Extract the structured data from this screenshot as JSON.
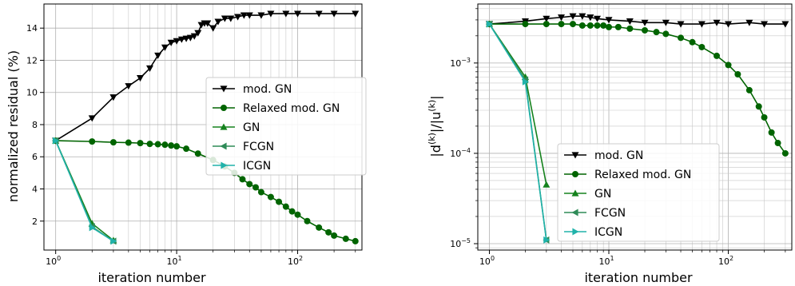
{
  "colors": {
    "mod_gn": "#000000",
    "relaxed_mod_gn": "#006400",
    "gn": "#15821d",
    "fcgn": "#2e8b57",
    "icgn": "#20b2aa"
  },
  "chart_data": [
    {
      "type": "line",
      "xscale": "log",
      "yscale": "linear",
      "xlabel": "iteration number",
      "ylabel": "normalized residual (%)",
      "xlim": [
        0.8,
        340
      ],
      "ylim": [
        0.2,
        15.5
      ],
      "xticks": [
        {
          "base": "10",
          "exp": "0"
        },
        {
          "base": "10",
          "exp": "1"
        },
        {
          "base": "10",
          "exp": "2"
        }
      ],
      "yticks": [
        "2",
        "4",
        "6",
        "8",
        "10",
        "12",
        "14"
      ],
      "grid": true,
      "legend": "center-right",
      "series": [
        {
          "name": "mod. GN",
          "marker": "triangle-down",
          "color": "#000000",
          "x": [
            1,
            2,
            3,
            4,
            5,
            6,
            7,
            8,
            9,
            10,
            11,
            12,
            13,
            14,
            15,
            16,
            17,
            18,
            20,
            22,
            25,
            28,
            32,
            36,
            40,
            50,
            60,
            80,
            100,
            150,
            200,
            300
          ],
          "y": [
            7.0,
            8.4,
            9.7,
            10.4,
            10.9,
            11.5,
            12.3,
            12.8,
            13.1,
            13.2,
            13.3,
            13.35,
            13.4,
            13.5,
            13.7,
            14.2,
            14.3,
            14.3,
            14.0,
            14.4,
            14.6,
            14.6,
            14.7,
            14.8,
            14.8,
            14.8,
            14.9,
            14.9,
            14.9,
            14.9,
            14.9,
            14.9
          ]
        },
        {
          "name": "Relaxed mod. GN",
          "marker": "circle",
          "color": "#006400",
          "x": [
            1,
            2,
            3,
            4,
            5,
            6,
            7,
            8,
            9,
            10,
            12,
            15,
            20,
            25,
            30,
            35,
            40,
            45,
            50,
            60,
            70,
            80,
            90,
            100,
            120,
            150,
            180,
            200,
            250,
            300
          ],
          "y": [
            7.0,
            6.95,
            6.9,
            6.88,
            6.85,
            6.8,
            6.78,
            6.75,
            6.7,
            6.65,
            6.5,
            6.2,
            5.8,
            5.4,
            5.0,
            4.6,
            4.3,
            4.1,
            3.8,
            3.5,
            3.2,
            2.9,
            2.6,
            2.4,
            2.0,
            1.6,
            1.3,
            1.1,
            0.9,
            0.75
          ]
        },
        {
          "name": "GN",
          "marker": "triangle-up",
          "color": "#15821d",
          "x": [
            1,
            2,
            3
          ],
          "y": [
            7.0,
            1.85,
            0.8
          ]
        },
        {
          "name": "FCGN",
          "marker": "triangle-left",
          "color": "#2e8b57",
          "x": [
            1,
            2,
            3
          ],
          "y": [
            7.0,
            1.65,
            0.75
          ]
        },
        {
          "name": "ICGN",
          "marker": "triangle-right",
          "color": "#20b2aa",
          "x": [
            1,
            2,
            3
          ],
          "y": [
            7.0,
            1.6,
            0.75
          ]
        }
      ]
    },
    {
      "type": "line",
      "xscale": "log",
      "yscale": "log",
      "xlabel": "iteration number",
      "ylabel": "|d^(k)|/|u^(k)|",
      "xlim": [
        0.8,
        340
      ],
      "ylim": [
        8.5e-06,
        0.0045
      ],
      "xticks": [
        {
          "base": "10",
          "exp": "0"
        },
        {
          "base": "10",
          "exp": "1"
        },
        {
          "base": "10",
          "exp": "2"
        }
      ],
      "yticks": [
        {
          "base": "10",
          "exp": "−5"
        },
        {
          "base": "10",
          "exp": "−4"
        },
        {
          "base": "10",
          "exp": "−3"
        }
      ],
      "grid": true,
      "legend": "lower-center",
      "series": [
        {
          "name": "mod. GN",
          "marker": "triangle-down",
          "color": "#000000",
          "x": [
            1,
            2,
            3,
            4,
            5,
            6,
            7,
            8,
            10,
            15,
            20,
            30,
            40,
            60,
            80,
            100,
            150,
            200,
            300
          ],
          "y": [
            0.0027,
            0.0029,
            0.0031,
            0.0032,
            0.0033,
            0.0033,
            0.0032,
            0.0031,
            0.003,
            0.0029,
            0.0028,
            0.0028,
            0.0027,
            0.0027,
            0.0028,
            0.0027,
            0.0028,
            0.0027,
            0.0027
          ]
        },
        {
          "name": "Relaxed mod. GN",
          "marker": "circle",
          "color": "#006400",
          "x": [
            1,
            2,
            3,
            4,
            5,
            6,
            7,
            8,
            9,
            10,
            12,
            15,
            20,
            25,
            30,
            40,
            50,
            60,
            80,
            100,
            120,
            150,
            180,
            200,
            230,
            260,
            300
          ],
          "y": [
            0.0027,
            0.0027,
            0.0027,
            0.0027,
            0.0027,
            0.0026,
            0.0026,
            0.0026,
            0.0026,
            0.0025,
            0.0025,
            0.0024,
            0.0023,
            0.0022,
            0.0021,
            0.0019,
            0.0017,
            0.0015,
            0.0012,
            0.00095,
            0.00075,
            0.0005,
            0.00033,
            0.00025,
            0.00017,
            0.00013,
            0.0001
          ]
        },
        {
          "name": "GN",
          "marker": "triangle-up",
          "color": "#15821d",
          "x": [
            1,
            2,
            3
          ],
          "y": [
            0.0027,
            0.0007,
            4.5e-05
          ]
        },
        {
          "name": "FCGN",
          "marker": "triangle-left",
          "color": "#2e8b57",
          "x": [
            1,
            2,
            3
          ],
          "y": [
            0.0027,
            0.00065,
            1.1e-05
          ]
        },
        {
          "name": "ICGN",
          "marker": "triangle-right",
          "color": "#20b2aa",
          "x": [
            1,
            2,
            3
          ],
          "y": [
            0.0027,
            0.00062,
            1.1e-05
          ]
        }
      ]
    }
  ]
}
